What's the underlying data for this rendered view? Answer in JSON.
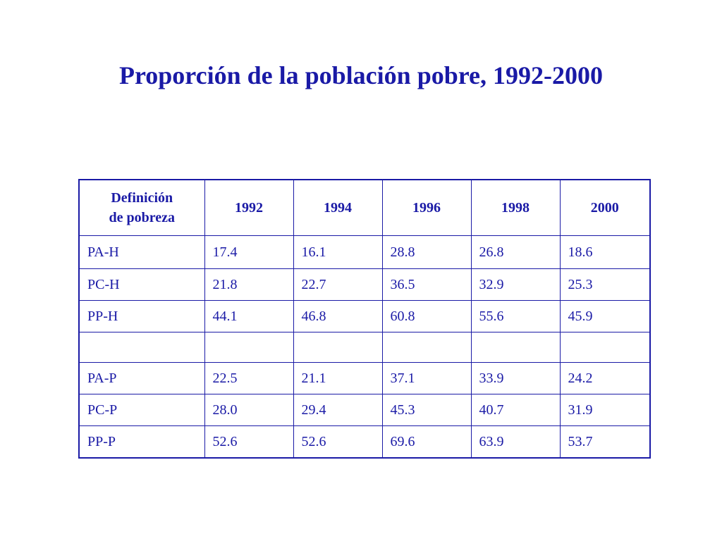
{
  "title": "Proporción de la población pobre, 1992-2000",
  "table": {
    "header": {
      "definition_line1": "Definición",
      "definition_line2": "de pobreza",
      "years": [
        "1992",
        "1994",
        "1996",
        "1998",
        "2000"
      ]
    },
    "rows": [
      {
        "label": "PA-H",
        "values": [
          "17.4",
          "16.1",
          "28.8",
          "26.8",
          "18.6"
        ]
      },
      {
        "label": "PC-H",
        "values": [
          "21.8",
          "22.7",
          "36.5",
          "32.9",
          "25.3"
        ]
      },
      {
        "label": "PP-H",
        "values": [
          "44.1",
          "46.8",
          "60.8",
          "55.6",
          "45.9"
        ]
      },
      {
        "label": "",
        "values": [
          "",
          "",
          "",
          "",
          ""
        ]
      },
      {
        "label": "PA-P",
        "values": [
          "22.5",
          "21.1",
          "37.1",
          "33.9",
          "24.2"
        ]
      },
      {
        "label": "PC-P",
        "values": [
          "28.0",
          "29.4",
          "45.3",
          "40.7",
          "31.9"
        ]
      },
      {
        "label": "PP-P",
        "values": [
          "52.6",
          "52.6",
          "69.6",
          "63.9",
          "53.7"
        ]
      }
    ]
  }
}
